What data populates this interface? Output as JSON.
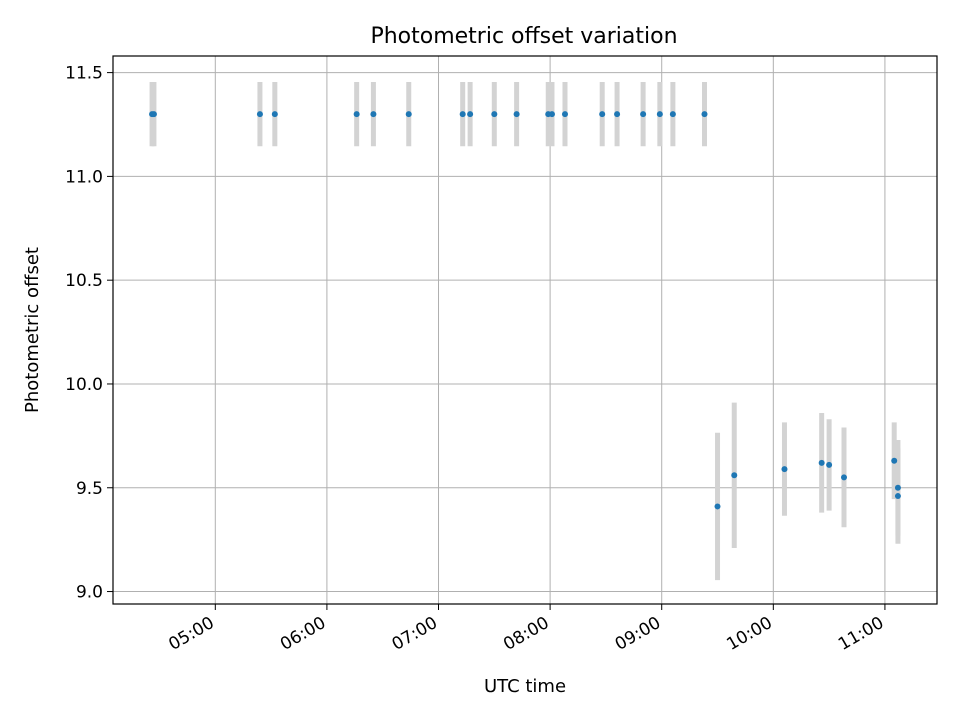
{
  "chart_data": {
    "type": "scatter",
    "title": "Photometric offset variation",
    "xlabel": "UTC time",
    "ylabel": "Photometric offset",
    "x_unit": "UTC time of day (HH:MM)",
    "xlim": [
      "04:05",
      "11:28"
    ],
    "ylim": [
      8.94,
      11.58
    ],
    "xticks": [
      "05:00",
      "06:00",
      "07:00",
      "08:00",
      "09:00",
      "10:00",
      "11:00"
    ],
    "yticks": [
      9.0,
      9.5,
      10.0,
      10.5,
      11.0,
      11.5
    ],
    "grid": true,
    "point_color": "#1f77b4",
    "errorbar_color": "#d3d3d3",
    "points": [
      {
        "x": "04:26",
        "y": 11.3,
        "err": 0.155
      },
      {
        "x": "04:27",
        "y": 11.3,
        "err": 0.155
      },
      {
        "x": "05:24",
        "y": 11.3,
        "err": 0.155
      },
      {
        "x": "05:32",
        "y": 11.3,
        "err": 0.155
      },
      {
        "x": "06:16",
        "y": 11.3,
        "err": 0.155
      },
      {
        "x": "06:25",
        "y": 11.3,
        "err": 0.155
      },
      {
        "x": "06:44",
        "y": 11.3,
        "err": 0.155
      },
      {
        "x": "07:13",
        "y": 11.3,
        "err": 0.155
      },
      {
        "x": "07:17",
        "y": 11.3,
        "err": 0.155
      },
      {
        "x": "07:30",
        "y": 11.3,
        "err": 0.155
      },
      {
        "x": "07:42",
        "y": 11.3,
        "err": 0.155
      },
      {
        "x": "07:59",
        "y": 11.3,
        "err": 0.155
      },
      {
        "x": "08:01",
        "y": 11.3,
        "err": 0.155
      },
      {
        "x": "08:08",
        "y": 11.3,
        "err": 0.155
      },
      {
        "x": "08:28",
        "y": 11.3,
        "err": 0.155
      },
      {
        "x": "08:36",
        "y": 11.3,
        "err": 0.155
      },
      {
        "x": "08:50",
        "y": 11.3,
        "err": 0.155
      },
      {
        "x": "08:59",
        "y": 11.3,
        "err": 0.155
      },
      {
        "x": "09:06",
        "y": 11.3,
        "err": 0.155
      },
      {
        "x": "09:23",
        "y": 11.3,
        "err": 0.155
      },
      {
        "x": "09:30",
        "y": 9.41,
        "err": 0.355
      },
      {
        "x": "09:39",
        "y": 9.56,
        "err": 0.35
      },
      {
        "x": "10:06",
        "y": 9.59,
        "err": 0.225
      },
      {
        "x": "10:26",
        "y": 9.62,
        "err": 0.24
      },
      {
        "x": "10:30",
        "y": 9.61,
        "err": 0.22
      },
      {
        "x": "10:38",
        "y": 9.55,
        "err": 0.24
      },
      {
        "x": "11:05",
        "y": 9.63,
        "err": 0.185
      },
      {
        "x": "11:07",
        "y": 9.5,
        "err": 0.23
      },
      {
        "x": "11:07",
        "y": 9.46,
        "err": 0.23
      }
    ]
  }
}
